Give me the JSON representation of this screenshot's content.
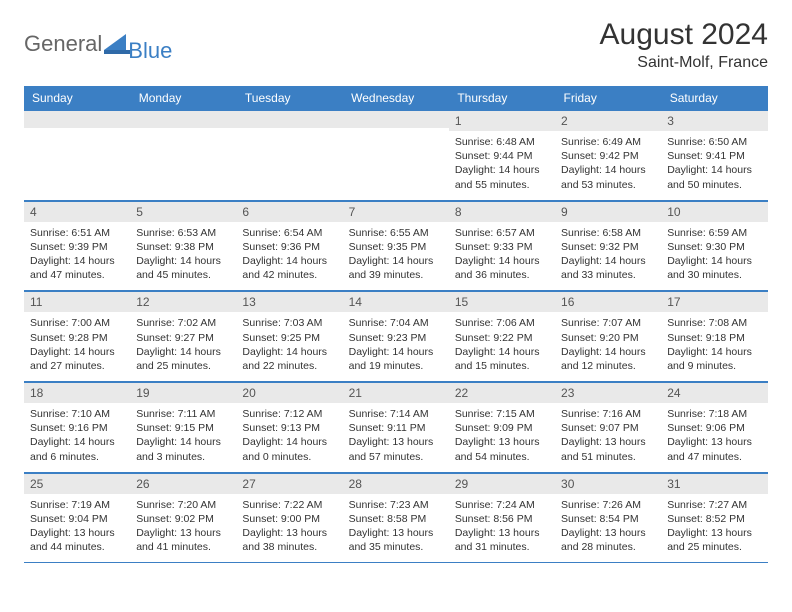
{
  "brand": {
    "part1": "General",
    "part2": "Blue"
  },
  "title": "August 2024",
  "location": "Saint-Molf, France",
  "colors": {
    "header_bg": "#3b7fc4",
    "daynum_bg": "#e9e9e9",
    "text": "#333333"
  },
  "day_headers": [
    "Sunday",
    "Monday",
    "Tuesday",
    "Wednesday",
    "Thursday",
    "Friday",
    "Saturday"
  ],
  "weeks": [
    [
      {
        "n": "",
        "sr": "",
        "ss": "",
        "dl": ""
      },
      {
        "n": "",
        "sr": "",
        "ss": "",
        "dl": ""
      },
      {
        "n": "",
        "sr": "",
        "ss": "",
        "dl": ""
      },
      {
        "n": "",
        "sr": "",
        "ss": "",
        "dl": ""
      },
      {
        "n": "1",
        "sr": "Sunrise: 6:48 AM",
        "ss": "Sunset: 9:44 PM",
        "dl": "Daylight: 14 hours and 55 minutes."
      },
      {
        "n": "2",
        "sr": "Sunrise: 6:49 AM",
        "ss": "Sunset: 9:42 PM",
        "dl": "Daylight: 14 hours and 53 minutes."
      },
      {
        "n": "3",
        "sr": "Sunrise: 6:50 AM",
        "ss": "Sunset: 9:41 PM",
        "dl": "Daylight: 14 hours and 50 minutes."
      }
    ],
    [
      {
        "n": "4",
        "sr": "Sunrise: 6:51 AM",
        "ss": "Sunset: 9:39 PM",
        "dl": "Daylight: 14 hours and 47 minutes."
      },
      {
        "n": "5",
        "sr": "Sunrise: 6:53 AM",
        "ss": "Sunset: 9:38 PM",
        "dl": "Daylight: 14 hours and 45 minutes."
      },
      {
        "n": "6",
        "sr": "Sunrise: 6:54 AM",
        "ss": "Sunset: 9:36 PM",
        "dl": "Daylight: 14 hours and 42 minutes."
      },
      {
        "n": "7",
        "sr": "Sunrise: 6:55 AM",
        "ss": "Sunset: 9:35 PM",
        "dl": "Daylight: 14 hours and 39 minutes."
      },
      {
        "n": "8",
        "sr": "Sunrise: 6:57 AM",
        "ss": "Sunset: 9:33 PM",
        "dl": "Daylight: 14 hours and 36 minutes."
      },
      {
        "n": "9",
        "sr": "Sunrise: 6:58 AM",
        "ss": "Sunset: 9:32 PM",
        "dl": "Daylight: 14 hours and 33 minutes."
      },
      {
        "n": "10",
        "sr": "Sunrise: 6:59 AM",
        "ss": "Sunset: 9:30 PM",
        "dl": "Daylight: 14 hours and 30 minutes."
      }
    ],
    [
      {
        "n": "11",
        "sr": "Sunrise: 7:00 AM",
        "ss": "Sunset: 9:28 PM",
        "dl": "Daylight: 14 hours and 27 minutes."
      },
      {
        "n": "12",
        "sr": "Sunrise: 7:02 AM",
        "ss": "Sunset: 9:27 PM",
        "dl": "Daylight: 14 hours and 25 minutes."
      },
      {
        "n": "13",
        "sr": "Sunrise: 7:03 AM",
        "ss": "Sunset: 9:25 PM",
        "dl": "Daylight: 14 hours and 22 minutes."
      },
      {
        "n": "14",
        "sr": "Sunrise: 7:04 AM",
        "ss": "Sunset: 9:23 PM",
        "dl": "Daylight: 14 hours and 19 minutes."
      },
      {
        "n": "15",
        "sr": "Sunrise: 7:06 AM",
        "ss": "Sunset: 9:22 PM",
        "dl": "Daylight: 14 hours and 15 minutes."
      },
      {
        "n": "16",
        "sr": "Sunrise: 7:07 AM",
        "ss": "Sunset: 9:20 PM",
        "dl": "Daylight: 14 hours and 12 minutes."
      },
      {
        "n": "17",
        "sr": "Sunrise: 7:08 AM",
        "ss": "Sunset: 9:18 PM",
        "dl": "Daylight: 14 hours and 9 minutes."
      }
    ],
    [
      {
        "n": "18",
        "sr": "Sunrise: 7:10 AM",
        "ss": "Sunset: 9:16 PM",
        "dl": "Daylight: 14 hours and 6 minutes."
      },
      {
        "n": "19",
        "sr": "Sunrise: 7:11 AM",
        "ss": "Sunset: 9:15 PM",
        "dl": "Daylight: 14 hours and 3 minutes."
      },
      {
        "n": "20",
        "sr": "Sunrise: 7:12 AM",
        "ss": "Sunset: 9:13 PM",
        "dl": "Daylight: 14 hours and 0 minutes."
      },
      {
        "n": "21",
        "sr": "Sunrise: 7:14 AM",
        "ss": "Sunset: 9:11 PM",
        "dl": "Daylight: 13 hours and 57 minutes."
      },
      {
        "n": "22",
        "sr": "Sunrise: 7:15 AM",
        "ss": "Sunset: 9:09 PM",
        "dl": "Daylight: 13 hours and 54 minutes."
      },
      {
        "n": "23",
        "sr": "Sunrise: 7:16 AM",
        "ss": "Sunset: 9:07 PM",
        "dl": "Daylight: 13 hours and 51 minutes."
      },
      {
        "n": "24",
        "sr": "Sunrise: 7:18 AM",
        "ss": "Sunset: 9:06 PM",
        "dl": "Daylight: 13 hours and 47 minutes."
      }
    ],
    [
      {
        "n": "25",
        "sr": "Sunrise: 7:19 AM",
        "ss": "Sunset: 9:04 PM",
        "dl": "Daylight: 13 hours and 44 minutes."
      },
      {
        "n": "26",
        "sr": "Sunrise: 7:20 AM",
        "ss": "Sunset: 9:02 PM",
        "dl": "Daylight: 13 hours and 41 minutes."
      },
      {
        "n": "27",
        "sr": "Sunrise: 7:22 AM",
        "ss": "Sunset: 9:00 PM",
        "dl": "Daylight: 13 hours and 38 minutes."
      },
      {
        "n": "28",
        "sr": "Sunrise: 7:23 AM",
        "ss": "Sunset: 8:58 PM",
        "dl": "Daylight: 13 hours and 35 minutes."
      },
      {
        "n": "29",
        "sr": "Sunrise: 7:24 AM",
        "ss": "Sunset: 8:56 PM",
        "dl": "Daylight: 13 hours and 31 minutes."
      },
      {
        "n": "30",
        "sr": "Sunrise: 7:26 AM",
        "ss": "Sunset: 8:54 PM",
        "dl": "Daylight: 13 hours and 28 minutes."
      },
      {
        "n": "31",
        "sr": "Sunrise: 7:27 AM",
        "ss": "Sunset: 8:52 PM",
        "dl": "Daylight: 13 hours and 25 minutes."
      }
    ]
  ]
}
